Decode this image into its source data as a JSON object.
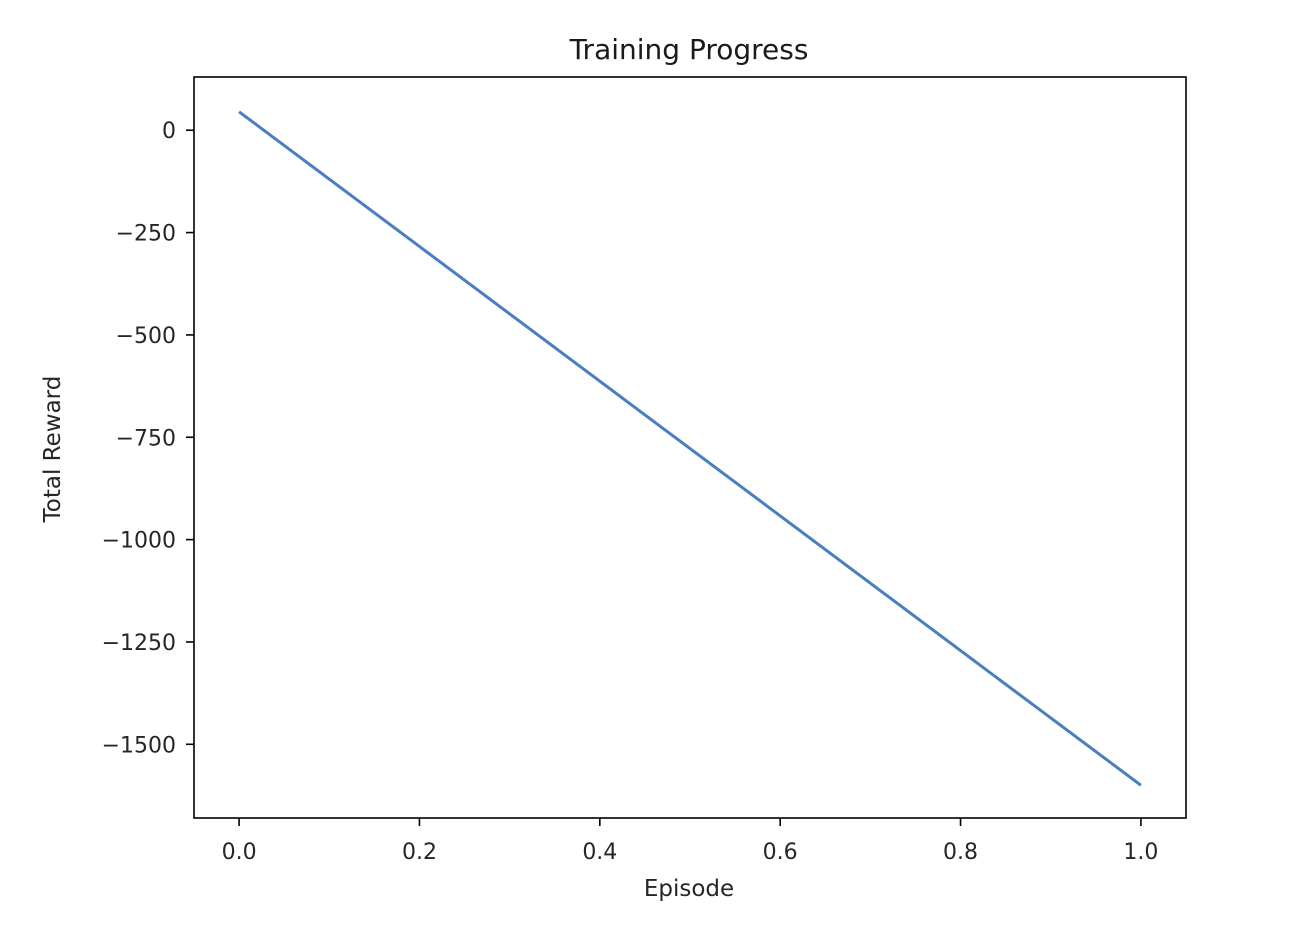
{
  "chart_data": {
    "type": "line",
    "title": "Training Progress",
    "xlabel": "Episode",
    "ylabel": "Total Reward",
    "xlim": [
      -0.05,
      1.05
    ],
    "ylim": [
      -1680,
      130
    ],
    "x_ticks": [
      0.0,
      0.2,
      0.4,
      0.6,
      0.8,
      1.0
    ],
    "x_tick_labels": [
      "0.0",
      "0.2",
      "0.4",
      "0.6",
      "0.8",
      "1.0"
    ],
    "y_ticks": [
      0,
      -250,
      -500,
      -750,
      -1000,
      -1250,
      -1500
    ],
    "y_tick_labels": [
      "0",
      "−250",
      "−500",
      "−750",
      "−1000",
      "−1250",
      "−1500"
    ],
    "grid": false,
    "legend": "none",
    "series": [
      {
        "x": [
          0.0,
          1.0
        ],
        "y": [
          45,
          -1600
        ],
        "color": "#4a7fbf"
      }
    ]
  }
}
